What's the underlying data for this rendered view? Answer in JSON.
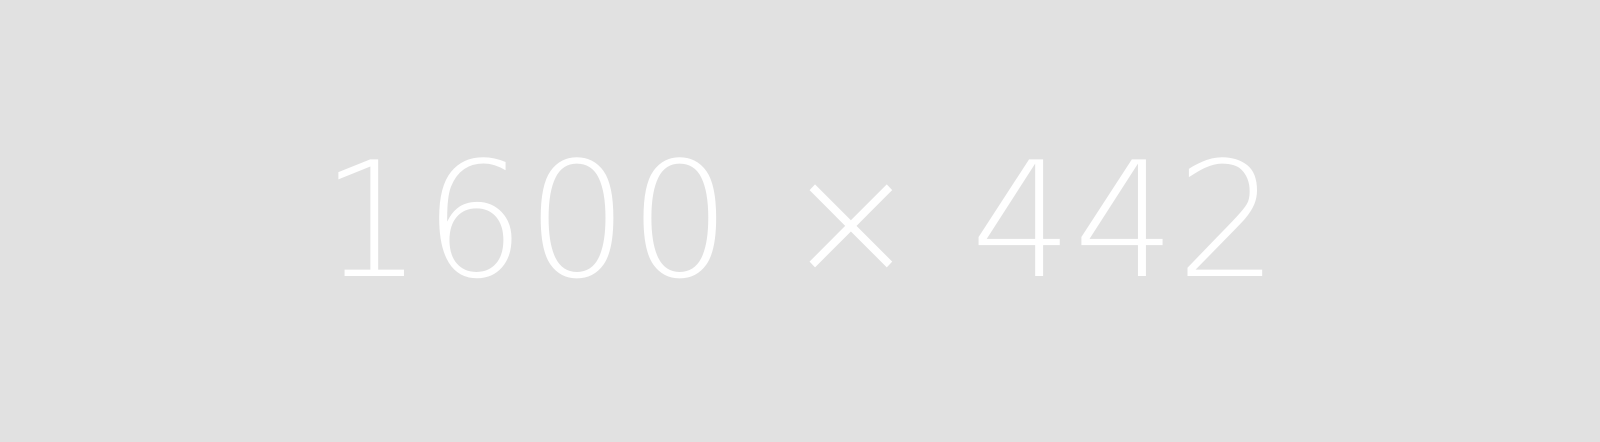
{
  "placeholder": {
    "label": "1600 × 442",
    "background_color": "#e1e1e1",
    "text_color": "#ffffff"
  }
}
